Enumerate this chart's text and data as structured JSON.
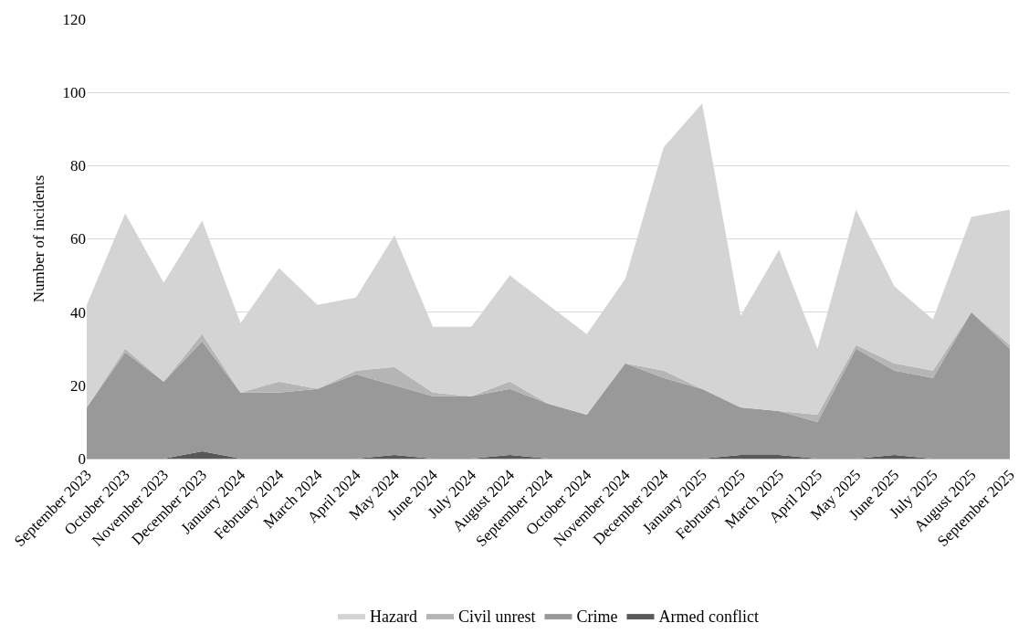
{
  "chart_data": {
    "type": "area",
    "stacked": true,
    "ylabel": "Number of incidents",
    "categories": [
      "September 2023",
      "October 2023",
      "November 2023",
      "December 2023",
      "January 2024",
      "February 2024",
      "March 2024",
      "April 2024",
      "May 2024",
      "June 2024",
      "July 2024",
      "August 2024",
      "September 2024",
      "October 2024",
      "November 2024",
      "December 2024",
      "January 2025",
      "February 2025",
      "March 2025",
      "April 2025",
      "May 2025",
      "June 2025",
      "July 2025",
      "August 2025",
      "September 2025"
    ],
    "series": [
      {
        "name": "Armed conflict",
        "color": "#595959",
        "values": [
          0,
          0,
          0,
          2,
          0,
          0,
          0,
          0,
          1,
          0,
          0,
          1,
          0,
          0,
          0,
          0,
          0,
          1,
          1,
          0,
          0,
          1,
          0,
          0,
          0
        ]
      },
      {
        "name": "Crime",
        "color": "#999999",
        "values": [
          14,
          29,
          21,
          30,
          18,
          18,
          19,
          23,
          19,
          17,
          17,
          18,
          15,
          12,
          26,
          22,
          19,
          13,
          12,
          10,
          30,
          23,
          22,
          40,
          30
        ]
      },
      {
        "name": "Civil unrest",
        "color": "#b5b5b5",
        "values": [
          0,
          1,
          0,
          2,
          0,
          3,
          0,
          1,
          5,
          1,
          0,
          2,
          0,
          0,
          0,
          2,
          0,
          0,
          0,
          2,
          1,
          2,
          2,
          0,
          1
        ]
      },
      {
        "name": "Hazard",
        "color": "#d4d4d4",
        "values": [
          28,
          37,
          27,
          31,
          19,
          31,
          23,
          20,
          36,
          18,
          19,
          29,
          27,
          22,
          23,
          61,
          78,
          25,
          44,
          18,
          37,
          21,
          14,
          26,
          37
        ]
      }
    ],
    "ylim": [
      0,
      120
    ],
    "yticks": [
      0,
      20,
      40,
      60,
      80,
      100,
      120
    ],
    "grid": "y",
    "legend": "bottom"
  }
}
